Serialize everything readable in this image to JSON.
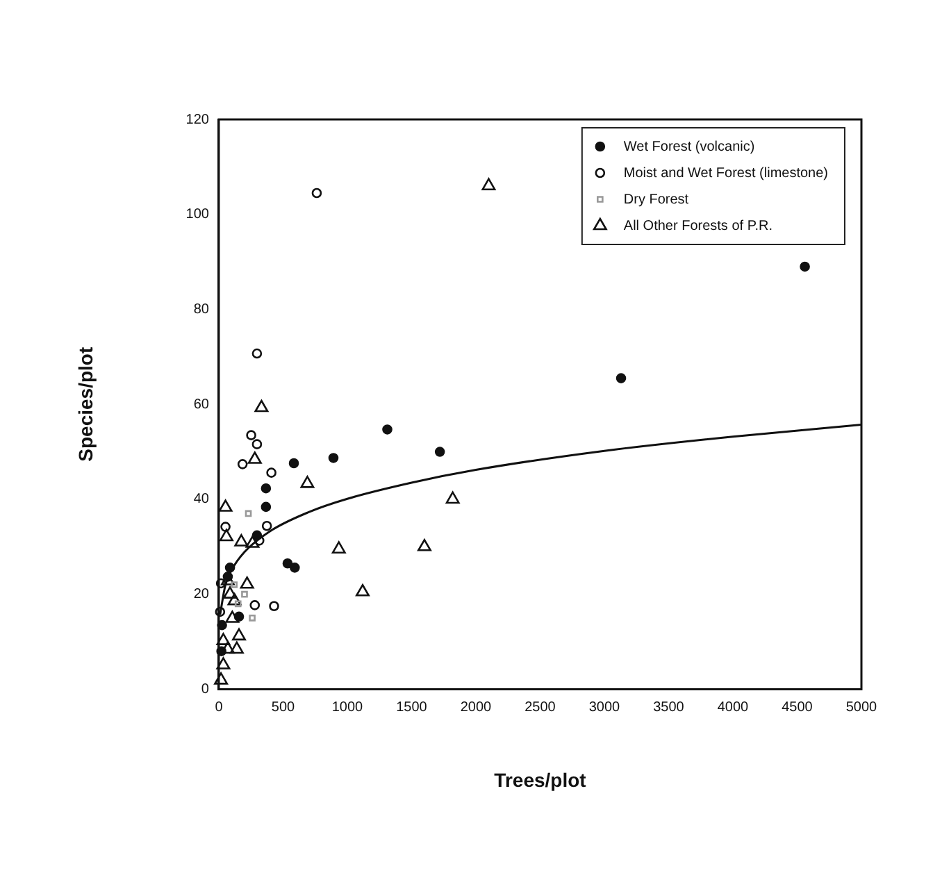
{
  "chart_data": {
    "type": "scatter",
    "xlabel": "Trees/plot",
    "ylabel": "Species/plot",
    "xlim": [
      0,
      5000
    ],
    "ylim": [
      0,
      120
    ],
    "xticks": [
      0,
      500,
      1000,
      1500,
      2000,
      2500,
      3000,
      3500,
      4000,
      4500,
      5000
    ],
    "yticks": [
      0,
      20,
      40,
      60,
      80,
      100,
      120
    ],
    "grid": false,
    "legend": "top right",
    "marker": "circle",
    "series": [
      {
        "name": "Wet Forest (volcanic)",
        "color": "#111111",
        "x": [
          20,
          25,
          70,
          87,
          157,
          297,
          367,
          367,
          535,
          591,
          584,
          892,
          1311,
          1720,
          3130,
          4560
        ],
        "values": [
          8,
          13.5,
          23.7,
          25.6,
          15.3,
          32.4,
          42.3,
          38.4,
          26.5,
          25.6,
          47.6,
          48.7,
          54.7,
          50,
          65.5,
          89
        ]
      },
      {
        "name": "Moist and Wet Forest (limestone)",
        "color": "#111111",
        "marker": "circle",
        "x": [
          10,
          17,
          52,
          185,
          252,
          297,
          297,
          280,
          315,
          374,
          409,
          430,
          762
        ],
        "values": [
          16.3,
          22.3,
          34.2,
          47.4,
          53.5,
          51.6,
          70.7,
          17.7,
          31.3,
          34.4,
          45.6,
          17.5,
          104.5
        ]
      },
      {
        "name": "Dry Forest",
        "color": "#999999",
        "marker": "square",
        "x": [
          120,
          150,
          200,
          230,
          260
        ],
        "values": [
          22,
          18,
          20,
          37,
          15
        ]
      },
      {
        "name": "All Other Forests of P.R.",
        "color": "#111111",
        "marker": "triangle",
        "x": [
          17,
          35,
          35,
          70,
          70,
          87,
          105,
          122,
          140,
          157,
          52,
          59,
          175,
          220,
          262,
          280,
          332,
          689,
          934,
          1119,
          1600,
          1820,
          2100
        ],
        "values": [
          1.9,
          5.1,
          10.2,
          8.4,
          22.8,
          20,
          14.9,
          18.6,
          8.4,
          11.2,
          38.3,
          32.1,
          31,
          22.1,
          30.7,
          48.4,
          59.3,
          43.3,
          29.5,
          20.5,
          30,
          40,
          106
        ]
      },
      {
        "type": "line",
        "color": "#111111",
        "marker": "none",
        "x": [
          10,
          50,
          100,
          200,
          400,
          700,
          1000,
          1500,
          2000,
          3000,
          4000,
          5000
        ],
        "values": [
          15.7,
          21.8,
          25.1,
          28.9,
          33.3,
          37.3,
          40.1,
          43.5,
          46.2,
          50.2,
          53.2,
          55.7
        ]
      }
    ]
  }
}
